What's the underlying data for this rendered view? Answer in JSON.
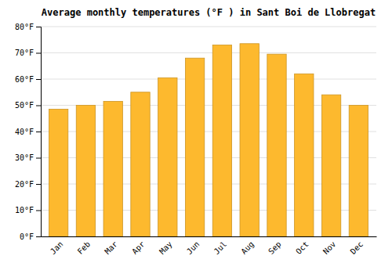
{
  "chart_data": {
    "type": "bar",
    "title": "Average monthly temperatures (°F ) in Sant Boi de Llobregat",
    "categories": [
      "Jan",
      "Feb",
      "Mar",
      "Apr",
      "May",
      "Jun",
      "Jul",
      "Aug",
      "Sep",
      "Oct",
      "Nov",
      "Dec"
    ],
    "values": [
      48.5,
      50.0,
      51.5,
      55.0,
      60.5,
      68.0,
      73.0,
      73.5,
      69.5,
      62.0,
      54.0,
      50.0
    ],
    "color": "#FDB92E",
    "ylim": [
      0,
      80
    ],
    "yticks": [
      {
        "value": 0,
        "label": "0°F"
      },
      {
        "value": 10,
        "label": "10°F"
      },
      {
        "value": 20,
        "label": "20°F"
      },
      {
        "value": 30,
        "label": "30°F"
      },
      {
        "value": 40,
        "label": "40°F"
      },
      {
        "value": 50,
        "label": "50°F"
      },
      {
        "value": 60,
        "label": "60°F"
      },
      {
        "value": 70,
        "label": "70°F"
      },
      {
        "value": 80,
        "label": "80°F"
      }
    ],
    "grid": true
  }
}
